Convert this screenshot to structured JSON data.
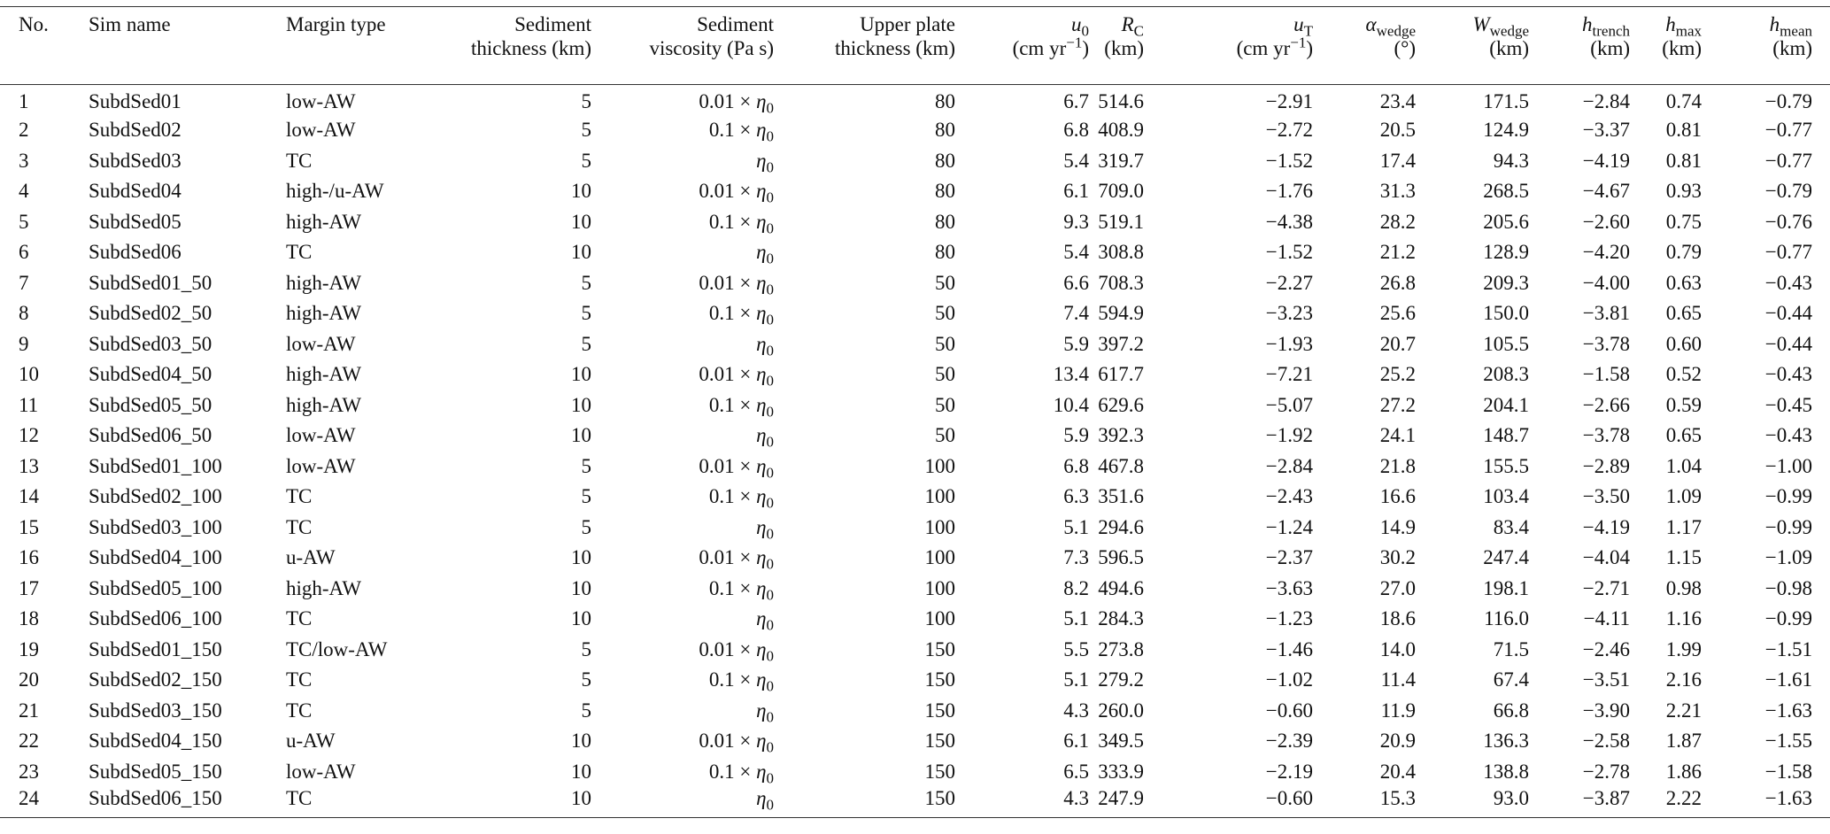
{
  "table": {
    "header": [
      [
        [
          "No."
        ]
      ],
      [
        [
          "Sim name"
        ]
      ],
      [
        [
          "Margin type"
        ]
      ],
      [
        [
          "Sediment"
        ],
        [
          "thickness (km)"
        ]
      ],
      [
        [
          "Sediment"
        ],
        [
          "viscosity (Pa s)"
        ]
      ],
      [
        [
          "Upper plate"
        ],
        [
          "thickness (km)"
        ]
      ],
      [
        [
          {
            "i": "u"
          },
          {
            "sub": "0"
          }
        ],
        [
          "(cm yr",
          {
            "sup": "−1"
          },
          ")"
        ]
      ],
      [
        [
          {
            "i": "R"
          },
          {
            "sub": "C"
          }
        ],
        [
          "(km)"
        ]
      ],
      [
        [
          {
            "i": "u"
          },
          {
            "sub": "T"
          }
        ],
        [
          "(cm yr",
          {
            "sup": "−1"
          },
          ")"
        ]
      ],
      [
        [
          {
            "i": "α"
          },
          {
            "sub": "wedge"
          }
        ],
        [
          "(°)"
        ]
      ],
      [
        [
          {
            "i": "W"
          },
          {
            "sub": "wedge"
          }
        ],
        [
          "(km)"
        ]
      ],
      [
        [
          {
            "i": "h"
          },
          {
            "sub": "trench"
          }
        ],
        [
          "(km)"
        ]
      ],
      [
        [
          {
            "i": "h"
          },
          {
            "sub": "max"
          }
        ],
        [
          "(km)"
        ]
      ],
      [
        [
          {
            "i": "h"
          },
          {
            "sub": "mean"
          }
        ],
        [
          "(km)"
        ]
      ]
    ],
    "rows": [
      [
        "1",
        "SubdSed01",
        "low-AW",
        "5",
        [
          "0.01 × ",
          {
            "i": "η"
          },
          {
            "sub": "0"
          }
        ],
        "80",
        "6.7",
        "514.6",
        "−2.91",
        "23.4",
        "171.5",
        "−2.84",
        "0.74",
        "−0.79"
      ],
      [
        "2",
        "SubdSed02",
        "low-AW",
        "5",
        [
          "0.1 × ",
          {
            "i": "η"
          },
          {
            "sub": "0"
          }
        ],
        "80",
        "6.8",
        "408.9",
        "−2.72",
        "20.5",
        "124.9",
        "−3.37",
        "0.81",
        "−0.77"
      ],
      [
        "3",
        "SubdSed03",
        "TC",
        "5",
        [
          {
            "i": "η"
          },
          {
            "sub": "0"
          }
        ],
        "80",
        "5.4",
        "319.7",
        "−1.52",
        "17.4",
        "94.3",
        "−4.19",
        "0.81",
        "−0.77"
      ],
      [
        "4",
        "SubdSed04",
        "high-/u-AW",
        "10",
        [
          "0.01 × ",
          {
            "i": "η"
          },
          {
            "sub": "0"
          }
        ],
        "80",
        "6.1",
        "709.0",
        "−1.76",
        "31.3",
        "268.5",
        "−4.67",
        "0.93",
        "−0.79"
      ],
      [
        "5",
        "SubdSed05",
        "high-AW",
        "10",
        [
          "0.1 × ",
          {
            "i": "η"
          },
          {
            "sub": "0"
          }
        ],
        "80",
        "9.3",
        "519.1",
        "−4.38",
        "28.2",
        "205.6",
        "−2.60",
        "0.75",
        "−0.76"
      ],
      [
        "6",
        "SubdSed06",
        "TC",
        "10",
        [
          {
            "i": "η"
          },
          {
            "sub": "0"
          }
        ],
        "80",
        "5.4",
        "308.8",
        "−1.52",
        "21.2",
        "128.9",
        "−4.20",
        "0.79",
        "−0.77"
      ],
      [
        "7",
        "SubdSed01_50",
        "high-AW",
        "5",
        [
          "0.01 × ",
          {
            "i": "η"
          },
          {
            "sub": "0"
          }
        ],
        "50",
        "6.6",
        "708.3",
        "−2.27",
        "26.8",
        "209.3",
        "−4.00",
        "0.63",
        "−0.43"
      ],
      [
        "8",
        "SubdSed02_50",
        "high-AW",
        "5",
        [
          "0.1 × ",
          {
            "i": "η"
          },
          {
            "sub": "0"
          }
        ],
        "50",
        "7.4",
        "594.9",
        "−3.23",
        "25.6",
        "150.0",
        "−3.81",
        "0.65",
        "−0.44"
      ],
      [
        "9",
        "SubdSed03_50",
        "low-AW",
        "5",
        [
          {
            "i": "η"
          },
          {
            "sub": "0"
          }
        ],
        "50",
        "5.9",
        "397.2",
        "−1.93",
        "20.7",
        "105.5",
        "−3.78",
        "0.60",
        "−0.44"
      ],
      [
        "10",
        "SubdSed04_50",
        "high-AW",
        "10",
        [
          "0.01 × ",
          {
            "i": "η"
          },
          {
            "sub": "0"
          }
        ],
        "50",
        "13.4",
        "617.7",
        "−7.21",
        "25.2",
        "208.3",
        "−1.58",
        "0.52",
        "−0.43"
      ],
      [
        "11",
        "SubdSed05_50",
        "high-AW",
        "10",
        [
          "0.1 × ",
          {
            "i": "η"
          },
          {
            "sub": "0"
          }
        ],
        "50",
        "10.4",
        "629.6",
        "−5.07",
        "27.2",
        "204.1",
        "−2.66",
        "0.59",
        "−0.45"
      ],
      [
        "12",
        "SubdSed06_50",
        "low-AW",
        "10",
        [
          {
            "i": "η"
          },
          {
            "sub": "0"
          }
        ],
        "50",
        "5.9",
        "392.3",
        "−1.92",
        "24.1",
        "148.7",
        "−3.78",
        "0.65",
        "−0.43"
      ],
      [
        "13",
        "SubdSed01_100",
        "low-AW",
        "5",
        [
          "0.01 × ",
          {
            "i": "η"
          },
          {
            "sub": "0"
          }
        ],
        "100",
        "6.8",
        "467.8",
        "−2.84",
        "21.8",
        "155.5",
        "−2.89",
        "1.04",
        "−1.00"
      ],
      [
        "14",
        "SubdSed02_100",
        "TC",
        "5",
        [
          "0.1 × ",
          {
            "i": "η"
          },
          {
            "sub": "0"
          }
        ],
        "100",
        "6.3",
        "351.6",
        "−2.43",
        "16.6",
        "103.4",
        "−3.50",
        "1.09",
        "−0.99"
      ],
      [
        "15",
        "SubdSed03_100",
        "TC",
        "5",
        [
          {
            "i": "η"
          },
          {
            "sub": "0"
          }
        ],
        "100",
        "5.1",
        "294.6",
        "−1.24",
        "14.9",
        "83.4",
        "−4.19",
        "1.17",
        "−0.99"
      ],
      [
        "16",
        "SubdSed04_100",
        "u-AW",
        "10",
        [
          "0.01 × ",
          {
            "i": "η"
          },
          {
            "sub": "0"
          }
        ],
        "100",
        "7.3",
        "596.5",
        "−2.37",
        "30.2",
        "247.4",
        "−4.04",
        "1.15",
        "−1.09"
      ],
      [
        "17",
        "SubdSed05_100",
        "high-AW",
        "10",
        [
          "0.1 × ",
          {
            "i": "η"
          },
          {
            "sub": "0"
          }
        ],
        "100",
        "8.2",
        "494.6",
        "−3.63",
        "27.0",
        "198.1",
        "−2.71",
        "0.98",
        "−0.98"
      ],
      [
        "18",
        "SubdSed06_100",
        "TC",
        "10",
        [
          {
            "i": "η"
          },
          {
            "sub": "0"
          }
        ],
        "100",
        "5.1",
        "284.3",
        "−1.23",
        "18.6",
        "116.0",
        "−4.11",
        "1.16",
        "−0.99"
      ],
      [
        "19",
        "SubdSed01_150",
        "TC/low-AW",
        "5",
        [
          "0.01 × ",
          {
            "i": "η"
          },
          {
            "sub": "0"
          }
        ],
        "150",
        "5.5",
        "273.8",
        "−1.46",
        "14.0",
        "71.5",
        "−2.46",
        "1.99",
        "−1.51"
      ],
      [
        "20",
        "SubdSed02_150",
        "TC",
        "5",
        [
          "0.1 × ",
          {
            "i": "η"
          },
          {
            "sub": "0"
          }
        ],
        "150",
        "5.1",
        "279.2",
        "−1.02",
        "11.4",
        "67.4",
        "−3.51",
        "2.16",
        "−1.61"
      ],
      [
        "21",
        "SubdSed03_150",
        "TC",
        "5",
        [
          {
            "i": "η"
          },
          {
            "sub": "0"
          }
        ],
        "150",
        "4.3",
        "260.0",
        "−0.60",
        "11.9",
        "66.8",
        "−3.90",
        "2.21",
        "−1.63"
      ],
      [
        "22",
        "SubdSed04_150",
        "u-AW",
        "10",
        [
          "0.01 × ",
          {
            "i": "η"
          },
          {
            "sub": "0"
          }
        ],
        "150",
        "6.1",
        "349.5",
        "−2.39",
        "20.9",
        "136.3",
        "−2.58",
        "1.87",
        "−1.55"
      ],
      [
        "23",
        "SubdSed05_150",
        "low-AW",
        "10",
        [
          "0.1 × ",
          {
            "i": "η"
          },
          {
            "sub": "0"
          }
        ],
        "150",
        "6.5",
        "333.9",
        "−2.19",
        "20.4",
        "138.8",
        "−2.78",
        "1.86",
        "−1.58"
      ],
      [
        "24",
        "SubdSed06_150",
        "TC",
        "10",
        [
          {
            "i": "η"
          },
          {
            "sub": "0"
          }
        ],
        "150",
        "4.3",
        "247.9",
        "−0.60",
        "15.3",
        "93.0",
        "−3.87",
        "2.22",
        "−1.63"
      ]
    ]
  }
}
